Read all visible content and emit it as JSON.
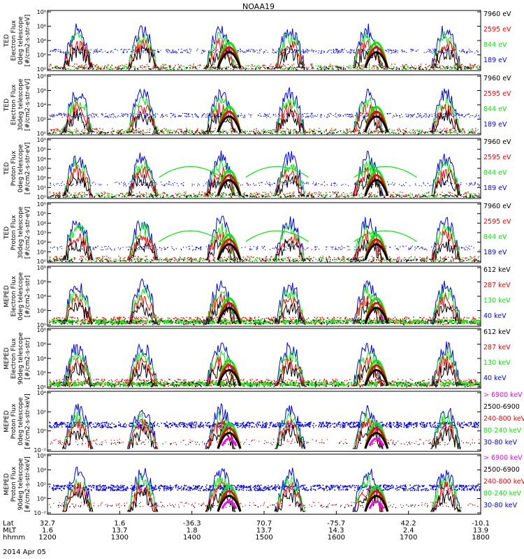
{
  "title": "NOAA19",
  "date_label": "2014 Apr 05",
  "colors": {
    "black": "#000000",
    "red": "#ff0000",
    "green": "#00ee00",
    "blue": "#0000ff",
    "magenta": "#ff00ff"
  },
  "x_rows": {
    "labels": [
      "Lat",
      "MLT",
      "hhmm"
    ],
    "lat": [
      "32.7",
      "1.6",
      "-36.3",
      "70.7",
      "-75.7",
      "42.2",
      "-10.1"
    ],
    "mlt": [
      "1.6",
      "13.7",
      "1.8",
      "13.7",
      "14.3",
      "2.4",
      "13.9"
    ],
    "hhmm": [
      "1200",
      "1300",
      "1400",
      "1500",
      "1600",
      "1700",
      "1800"
    ]
  },
  "chart_data": [
    {
      "type": "scatter",
      "ylabel": [
        "TED",
        "Electron Flux",
        "0deg telescope",
        "[#/cm2-s-str-eV]"
      ],
      "yscale": "log",
      "yticks": [
        "10⁰",
        "10²",
        "10⁴",
        "10⁶",
        "10⁸"
      ],
      "ylim": [
        1,
        100000000
      ],
      "xlim": [
        "12:00",
        "18:00"
      ],
      "legend": [
        {
          "label": "7960 eV",
          "color": "#000000"
        },
        {
          "label": "2595 eV",
          "color": "#ff0000"
        },
        {
          "label": "844 eV",
          "color": "#00ee00"
        },
        {
          "label": "189 eV",
          "color": "#0000ff"
        }
      ]
    },
    {
      "type": "scatter",
      "ylabel": [
        "TED",
        "Electron Flux",
        "30deg telescope",
        "[#/cm2-s-str-eV]"
      ],
      "yscale": "log",
      "yticks": [
        "10⁰",
        "10²",
        "10⁴",
        "10⁶",
        "10⁸"
      ],
      "ylim": [
        1,
        100000000
      ],
      "xlim": [
        "12:00",
        "18:00"
      ],
      "legend": [
        {
          "label": "7960 eV",
          "color": "#000000"
        },
        {
          "label": "2595 eV",
          "color": "#ff0000"
        },
        {
          "label": "844 eV",
          "color": "#00ee00"
        },
        {
          "label": "189 eV",
          "color": "#0000ff"
        }
      ]
    },
    {
      "type": "scatter",
      "ylabel": [
        "TED",
        "Proton Flux",
        "0deg telescope",
        "[#/cm2-s-str-eV]"
      ],
      "yscale": "log",
      "yticks": [
        "10⁰",
        "10¹",
        "10²",
        "10³",
        "10⁴",
        "10⁵",
        "10⁶"
      ],
      "ylim": [
        1,
        1000000
      ],
      "xlim": [
        "12:00",
        "18:00"
      ],
      "legend": [
        {
          "label": "7960 eV",
          "color": "#000000"
        },
        {
          "label": "2595 eV",
          "color": "#ff0000"
        },
        {
          "label": "844 eV",
          "color": "#00ee00"
        },
        {
          "label": "189 eV",
          "color": "#0000ff"
        }
      ]
    },
    {
      "type": "scatter",
      "ylabel": [
        "TED",
        "Proton Flux",
        "30deg telescope",
        "[#/cm2-s-str-eV]"
      ],
      "yscale": "log",
      "yticks": [
        "10⁰",
        "10¹",
        "10²",
        "10³",
        "10⁴",
        "10⁵",
        "10⁶"
      ],
      "ylim": [
        1,
        1000000
      ],
      "xlim": [
        "12:00",
        "18:00"
      ],
      "legend": [
        {
          "label": "7960 eV",
          "color": "#000000"
        },
        {
          "label": "2595 eV",
          "color": "#ff0000"
        },
        {
          "label": "844 eV",
          "color": "#00ee00"
        },
        {
          "label": "189 eV",
          "color": "#0000ff"
        }
      ]
    },
    {
      "type": "scatter",
      "ylabel": [
        "MEPED",
        "Electron Flux",
        "0deg telescope",
        "[#/cm2-s-str]"
      ],
      "yscale": "log",
      "yticks": [
        "10⁰",
        "10²",
        "10⁴",
        "10⁶",
        "10⁸"
      ],
      "ylim": [
        1,
        100000000
      ],
      "xlim": [
        "12:00",
        "18:00"
      ],
      "legend": [
        {
          "label": "612 keV",
          "color": "#000000"
        },
        {
          "label": "287 keV",
          "color": "#ff0000"
        },
        {
          "label": "130 keV",
          "color": "#00ee00"
        },
        {
          "label": "40 keV",
          "color": "#0000ff"
        }
      ]
    },
    {
      "type": "scatter",
      "ylabel": [
        "MEPED",
        "Electron Flux",
        "90deg telescope",
        "[#/cm2-s-str]"
      ],
      "yscale": "log",
      "yticks": [
        "10⁰",
        "10²",
        "10⁴",
        "10⁶",
        "10⁸"
      ],
      "ylim": [
        1,
        100000000
      ],
      "xlim": [
        "12:00",
        "18:00"
      ],
      "legend": [
        {
          "label": "612 keV",
          "color": "#000000"
        },
        {
          "label": "287 keV",
          "color": "#ff0000"
        },
        {
          "label": "130 keV",
          "color": "#00ee00"
        },
        {
          "label": "40 keV",
          "color": "#0000ff"
        }
      ]
    },
    {
      "type": "scatter",
      "ylabel": [
        "MEPED",
        "Proton Flux",
        "0deg telescope",
        "[#/cm2-s-str-keV]"
      ],
      "yscale": "log",
      "yticks": [
        "10⁻²",
        "10⁰",
        "10²",
        "10⁴"
      ],
      "ylim": [
        0.01,
        100000
      ],
      "xlim": [
        "12:00",
        "18:00"
      ],
      "legend": [
        {
          "label": "> 6900 keV",
          "color": "#ff00ff"
        },
        {
          "label": "2500-6900",
          "color": "#000000"
        },
        {
          "label": "240-800 keV",
          "color": "#ff0000"
        },
        {
          "label": "80-240 keV",
          "color": "#00ee00"
        },
        {
          "label": "30-80 keV",
          "color": "#0000ff"
        }
      ]
    },
    {
      "type": "scatter",
      "ylabel": [
        "MEPED",
        "Proton Flux",
        "90deg telescope",
        "[#/cm2-s-str-keV]"
      ],
      "yscale": "log",
      "yticks": [
        "10⁻²",
        "10⁰",
        "10²",
        "10⁴",
        "10⁶"
      ],
      "ylim": [
        0.01,
        1000000
      ],
      "xlim": [
        "12:00",
        "18:00"
      ],
      "legend": [
        {
          "label": "> 6900 keV",
          "color": "#ff00ff"
        },
        {
          "label": "2500-6900",
          "color": "#000000"
        },
        {
          "label": "240-800 keV",
          "color": "#ff0000"
        },
        {
          "label": "80-240 keV",
          "color": "#00ee00"
        },
        {
          "label": "30-80 keV",
          "color": "#0000ff"
        }
      ]
    }
  ]
}
